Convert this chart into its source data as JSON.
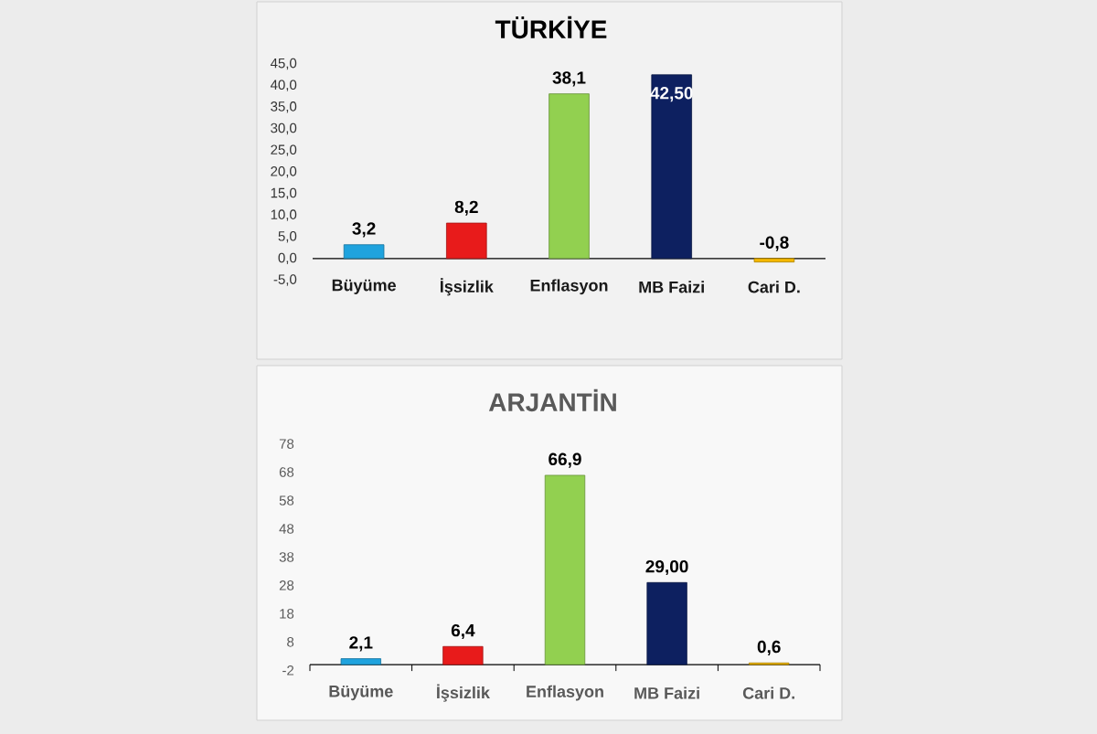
{
  "chart_data": [
    {
      "type": "bar",
      "title": "TÜRKİYE",
      "categories": [
        "Büyüme",
        "İşsizlik",
        "Enflasyon",
        "MB Faizi",
        "Cari D."
      ],
      "values": [
        3.2,
        8.2,
        38.1,
        42.5,
        -0.8
      ],
      "value_labels": [
        "3,2",
        "8,2",
        "38,1",
        "42,50",
        "-0,8"
      ],
      "colors": [
        "#1fa3de",
        "#e81b1b",
        "#92d050",
        "#0d2060",
        "#f5b800"
      ],
      "ylim": [
        -5,
        45
      ],
      "yticks": [
        {
          "value": -5,
          "label": "-5,0"
        },
        {
          "value": 0,
          "label": "0,0"
        },
        {
          "value": 5,
          "label": "5,0"
        },
        {
          "value": 10,
          "label": "10,0"
        },
        {
          "value": 15,
          "label": "15,0"
        },
        {
          "value": 20,
          "label": "20,0"
        },
        {
          "value": 25,
          "label": "25,0"
        },
        {
          "value": 30,
          "label": "30,0"
        },
        {
          "value": 35,
          "label": "35,0"
        },
        {
          "value": 40,
          "label": "40,0"
        },
        {
          "value": 45,
          "label": "45,0"
        }
      ]
    },
    {
      "type": "bar",
      "title": "ARJANTİN",
      "categories": [
        "Büyüme",
        "İşsizlik",
        "Enflasyon",
        "MB Faizi",
        "Cari D."
      ],
      "values": [
        2.1,
        6.4,
        66.9,
        29.0,
        0.6
      ],
      "value_labels": [
        "2,1",
        "6,4",
        "66,9",
        "29,00",
        "0,6"
      ],
      "colors": [
        "#1fa3de",
        "#e81b1b",
        "#92d050",
        "#0d2060",
        "#f5b800"
      ],
      "ylim": [
        -2,
        78
      ],
      "yticks": [
        -2,
        8,
        18,
        28,
        38,
        48,
        58,
        68,
        78
      ]
    }
  ]
}
